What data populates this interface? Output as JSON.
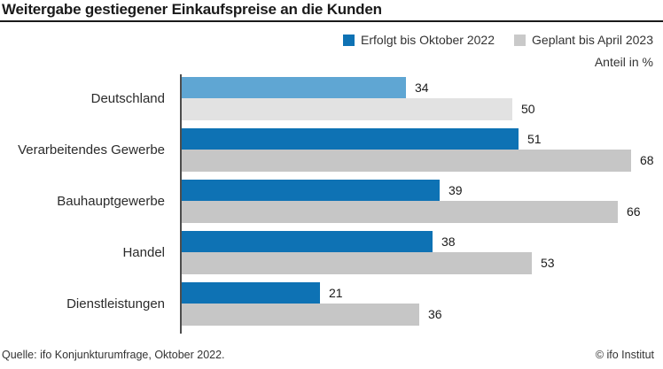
{
  "title": "Weitergabe gestiegener Einkaufspreise an die Kunden",
  "legend": [
    {
      "label": "Erfolgt bis Oktober 2022",
      "color": "#0e72b4"
    },
    {
      "label": "Geplant bis April 2023",
      "color": "#c9c9c9"
    }
  ],
  "unit_label": "Anteil in %",
  "footer": {
    "source": "Quelle: ifo Konjunkturumfrage, Oktober 2022.",
    "copyright": "© ifo Institut"
  },
  "chart_data": {
    "type": "bar",
    "orientation": "horizontal",
    "title": "Weitergabe gestiegener Einkaufspreise an die Kunden",
    "unit": "Anteil in %",
    "categories": [
      "Deutschland",
      "Verarbeitendes Gewerbe",
      "Bauhauptgewerbe",
      "Handel",
      "Dienstleistungen"
    ],
    "series": [
      {
        "name": "Erfolgt bis Oktober 2022",
        "values": [
          34,
          51,
          39,
          38,
          21
        ]
      },
      {
        "name": "Geplant bis April 2023",
        "values": [
          50,
          68,
          66,
          53,
          36
        ]
      }
    ],
    "xlim": [
      0,
      72.5
    ],
    "grid": false,
    "legend_position": "top-right",
    "data_labels": true,
    "highlight_index": 0,
    "colors": {
      "erfolgt": "#0e72b4",
      "geplant": "#c6c6c6",
      "erfolgt_highlight": "#5fa6d3",
      "geplant_highlight": "#e2e2e2"
    }
  }
}
